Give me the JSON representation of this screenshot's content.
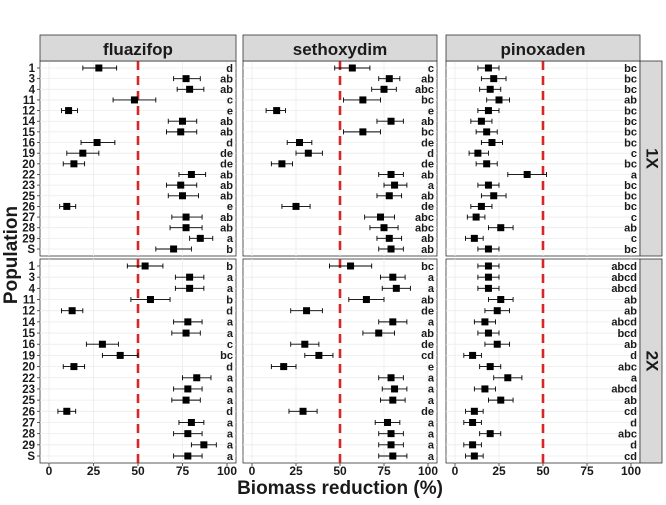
{
  "chart_data": {
    "type": "scatter",
    "subtype": "faceted point-range (mean ± error bars) with compact letter display",
    "xlabel": "Biomass reduction (%)",
    "ylabel": "Population",
    "xlim": [
      0,
      100
    ],
    "x_ticks": [
      "0",
      "25",
      "50",
      "75",
      "100"
    ],
    "reference_line": {
      "x": 50,
      "style": "dashed",
      "color": "#d62728"
    },
    "grid": true,
    "columns": [
      "fluazifop",
      "sethoxydim",
      "pinoxaden"
    ],
    "rows": [
      "1X",
      "2X"
    ],
    "populations": [
      "1",
      "3",
      "4",
      "11",
      "12",
      "14",
      "15",
      "16",
      "19",
      "20",
      "22",
      "23",
      "25",
      "26",
      "27",
      "28",
      "29",
      "S"
    ],
    "panels": [
      {
        "herbicide": "fluazifop",
        "rate": "1X",
        "mean": [
          28,
          77,
          79,
          48,
          11,
          75,
          74,
          27,
          19,
          14,
          80,
          74,
          75,
          10,
          77,
          77,
          85,
          70
        ],
        "low": [
          19,
          70,
          72,
          36,
          7,
          67,
          66,
          18,
          10,
          8,
          73,
          66,
          67,
          6,
          69,
          68,
          79,
          60
        ],
        "high": [
          38,
          85,
          87,
          60,
          16,
          83,
          83,
          37,
          28,
          20,
          88,
          83,
          84,
          15,
          86,
          86,
          92,
          80
        ],
        "letters": [
          "d",
          "ab",
          "ab",
          "c",
          "e",
          "ab",
          "ab",
          "d",
          "de",
          "de",
          "ab",
          "ab",
          "ab",
          "e",
          "ab",
          "ab",
          "a",
          "b"
        ]
      },
      {
        "herbicide": "sethoxydim",
        "rate": "1X",
        "mean": [
          57,
          78,
          75,
          63,
          14,
          79,
          63,
          27,
          32,
          17,
          79,
          81,
          78,
          25,
          73,
          75,
          78,
          79
        ],
        "low": [
          47,
          72,
          68,
          52,
          8,
          71,
          52,
          20,
          25,
          11,
          72,
          75,
          71,
          17,
          64,
          67,
          71,
          72
        ],
        "high": [
          67,
          84,
          82,
          73,
          19,
          86,
          73,
          34,
          40,
          23,
          86,
          88,
          85,
          33,
          81,
          83,
          85,
          86
        ],
        "letters": [
          "c",
          "ab",
          "abc",
          "bc",
          "e",
          "ab",
          "bc",
          "de",
          "d",
          "de",
          "ab",
          "a",
          "ab",
          "de",
          "abc",
          "abc",
          "ab",
          "ab"
        ]
      },
      {
        "herbicide": "pinoxaden",
        "rate": "1X",
        "mean": [
          19,
          22,
          20,
          25,
          19,
          15,
          18,
          21,
          13,
          18,
          41,
          19,
          22,
          15,
          12,
          26,
          11,
          19
        ],
        "low": [
          13,
          15,
          14,
          18,
          13,
          9,
          12,
          15,
          8,
          12,
          30,
          13,
          15,
          9,
          7,
          19,
          6,
          13
        ],
        "high": [
          25,
          29,
          26,
          31,
          25,
          21,
          24,
          27,
          19,
          24,
          52,
          25,
          29,
          21,
          17,
          33,
          16,
          25
        ],
        "letters": [
          "bc",
          "bc",
          "bc",
          "ab",
          "bc",
          "bc",
          "bc",
          "bc",
          "c",
          "bc",
          "a",
          "bc",
          "bc",
          "bc",
          "c",
          "ab",
          "c",
          "bc"
        ]
      },
      {
        "herbicide": "fluazifop",
        "rate": "2X",
        "mean": [
          54,
          79,
          79,
          57,
          13,
          78,
          77,
          30,
          40,
          14,
          83,
          78,
          77,
          10,
          80,
          78,
          87,
          78
        ],
        "low": [
          44,
          71,
          71,
          46,
          7,
          70,
          69,
          21,
          30,
          8,
          75,
          70,
          69,
          5,
          73,
          70,
          80,
          70
        ],
        "high": [
          64,
          87,
          87,
          68,
          19,
          86,
          85,
          39,
          50,
          20,
          91,
          86,
          85,
          15,
          87,
          86,
          94,
          86
        ],
        "letters": [
          "b",
          "a",
          "a",
          "b",
          "d",
          "a",
          "a",
          "c",
          "bc",
          "d",
          "a",
          "a",
          "a",
          "d",
          "a",
          "a",
          "a",
          "a"
        ]
      },
      {
        "herbicide": "sethoxydim",
        "rate": "2X",
        "mean": [
          56,
          80,
          82,
          65,
          31,
          80,
          72,
          30,
          38,
          18,
          79,
          81,
          80,
          29,
          77,
          79,
          79,
          80
        ],
        "low": [
          44,
          73,
          74,
          55,
          22,
          72,
          63,
          22,
          30,
          11,
          72,
          74,
          73,
          21,
          70,
          72,
          72,
          72
        ],
        "high": [
          68,
          87,
          90,
          75,
          40,
          88,
          81,
          38,
          46,
          25,
          86,
          88,
          87,
          37,
          84,
          86,
          86,
          88
        ],
        "letters": [
          "bc",
          "a",
          "a",
          "ab",
          "de",
          "a",
          "ab",
          "de",
          "cd",
          "e",
          "a",
          "a",
          "a",
          "de",
          "a",
          "a",
          "a",
          "a"
        ]
      },
      {
        "herbicide": "pinoxaden",
        "rate": "2X",
        "mean": [
          19,
          19,
          19,
          26,
          24,
          17,
          19,
          24,
          10,
          20,
          30,
          17,
          26,
          11,
          10,
          20,
          10,
          11
        ],
        "low": [
          13,
          13,
          13,
          19,
          17,
          11,
          13,
          17,
          5,
          14,
          22,
          11,
          19,
          6,
          5,
          14,
          5,
          6
        ],
        "high": [
          25,
          25,
          25,
          33,
          31,
          23,
          25,
          31,
          15,
          26,
          38,
          23,
          33,
          16,
          15,
          26,
          15,
          16
        ],
        "letters": [
          "abcd",
          "abcd",
          "abcd",
          "ab",
          "ab",
          "abcd",
          "bcd",
          "ab",
          "d",
          "abc",
          "a",
          "abcd",
          "ab",
          "cd",
          "d",
          "abc",
          "d",
          "cd"
        ]
      }
    ]
  }
}
